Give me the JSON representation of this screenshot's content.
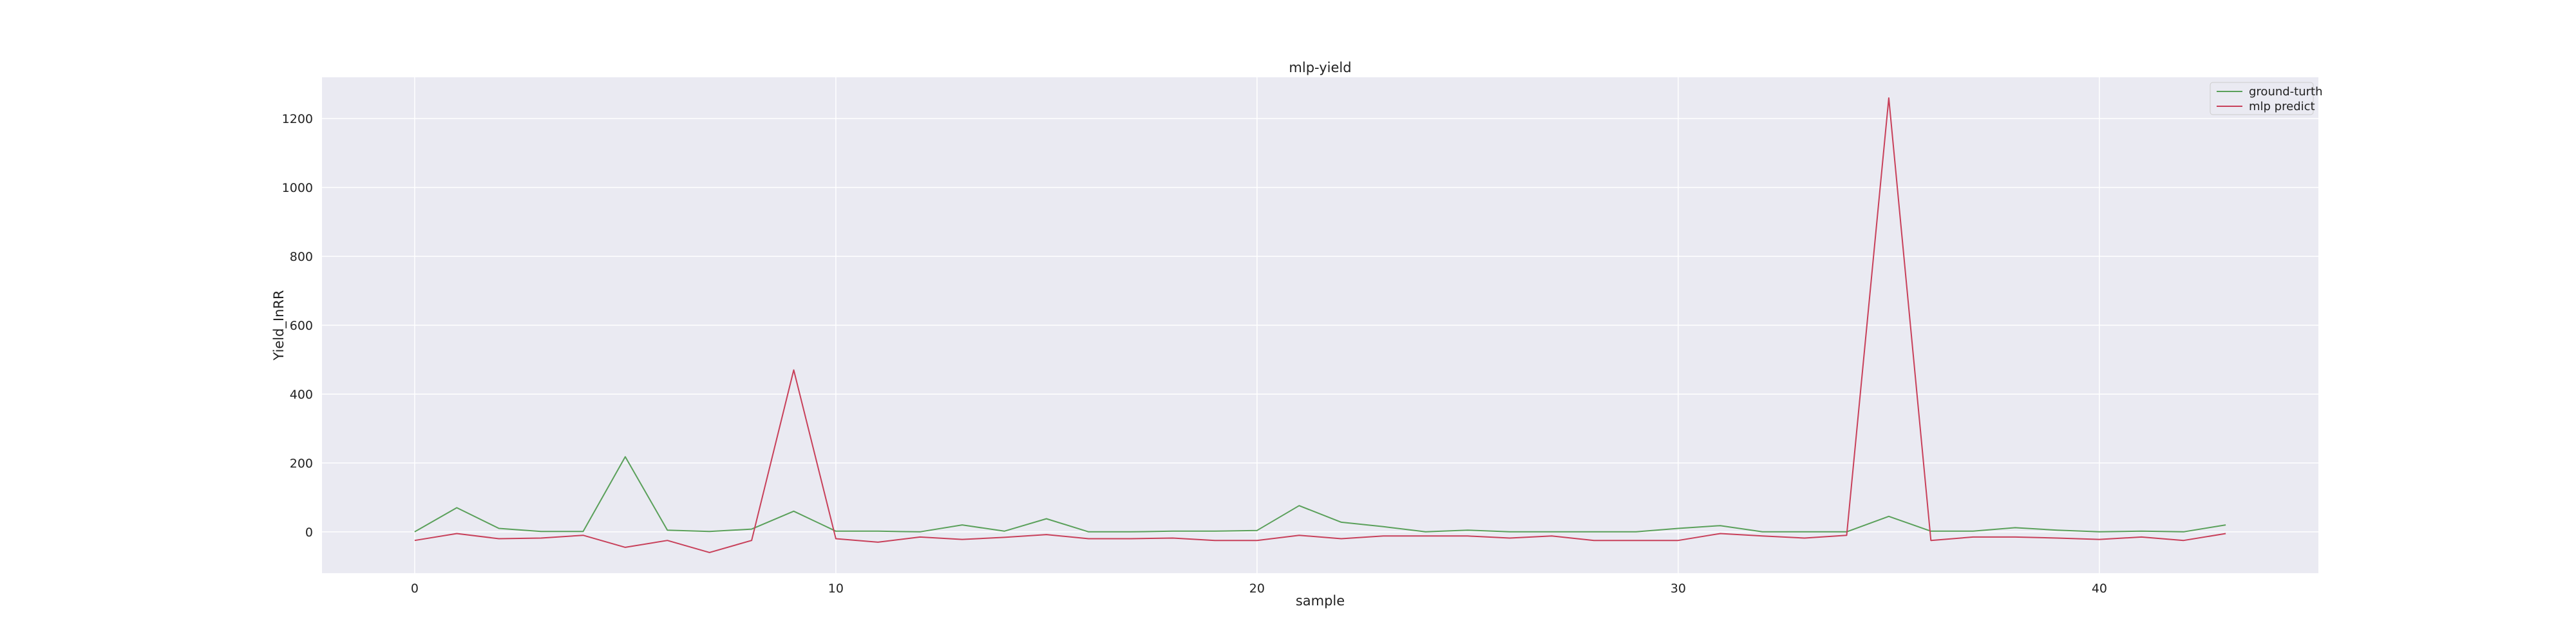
{
  "chart_data": {
    "type": "line",
    "title": "mlp-yield",
    "xlabel": "sample",
    "ylabel": "Yield_InRR",
    "xlim": [
      -2.2,
      45.2
    ],
    "ylim": [
      -120,
      1320
    ],
    "xticks": [
      0,
      10,
      20,
      30,
      40
    ],
    "yticks": [
      0,
      200,
      400,
      600,
      800,
      1000,
      1200
    ],
    "grid": true,
    "background": "#eaeaf2",
    "legend_position": "top-right",
    "x": [
      0,
      1,
      2,
      3,
      4,
      5,
      6,
      7,
      8,
      9,
      10,
      11,
      12,
      13,
      14,
      15,
      16,
      17,
      18,
      19,
      20,
      21,
      22,
      23,
      24,
      25,
      26,
      27,
      28,
      29,
      30,
      31,
      32,
      33,
      34,
      35,
      36,
      37,
      38,
      39,
      40,
      41,
      42,
      43
    ],
    "series": [
      {
        "name": "ground-turth",
        "color": "#5aa05a",
        "values": [
          0,
          70,
          10,
          1,
          1,
          218,
          5,
          1,
          8,
          60,
          2,
          2,
          0,
          20,
          2,
          38,
          0,
          0,
          2,
          2,
          4,
          76,
          28,
          15,
          0,
          5,
          0,
          0,
          0,
          0,
          10,
          18,
          0,
          0,
          0,
          45,
          2,
          2,
          12,
          5,
          0,
          2,
          0,
          20
        ]
      },
      {
        "name": "mlp predict",
        "color": "#c8405a",
        "values": [
          -25,
          -5,
          -20,
          -18,
          -10,
          -45,
          -25,
          -60,
          -25,
          470,
          -20,
          -30,
          -15,
          -22,
          -16,
          -8,
          -20,
          -20,
          -18,
          -25,
          -25,
          -10,
          -20,
          -12,
          -12,
          -12,
          -18,
          -12,
          -25,
          -25,
          -25,
          -5,
          -12,
          -18,
          -10,
          1260,
          -25,
          -15,
          -15,
          -18,
          -22,
          -15,
          -25,
          -5
        ]
      }
    ]
  }
}
